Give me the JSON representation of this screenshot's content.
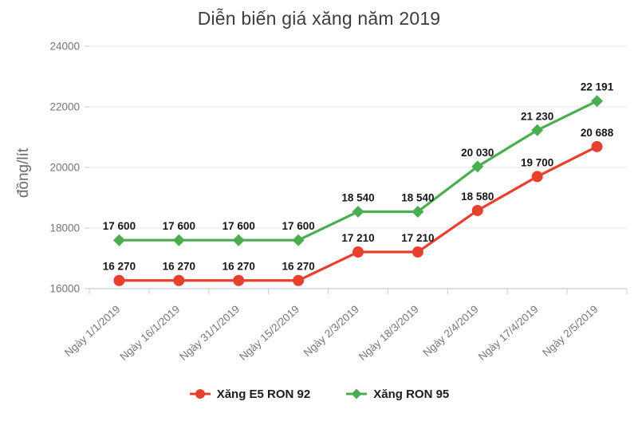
{
  "title": "Diễn biến giá xăng năm 2019",
  "chart_data": {
    "type": "line",
    "title": "Diễn biến giá xăng năm 2019",
    "xlabel": "",
    "ylabel": "đồng/lít",
    "ylim": [
      16000,
      24000
    ],
    "y_ticks": [
      16000,
      18000,
      20000,
      22000,
      24000
    ],
    "grid": "horizontal-only",
    "legend_position": "bottom",
    "x_tick_rotation": -42,
    "data_label_format": "space-thousands",
    "categories": [
      "Ngày 1/1/2019",
      "Ngày 16/1/2019",
      "Ngày 31/1/2019",
      "Ngày 15/2/2019",
      "Ngày 2/3/2019",
      "Ngày 18/3/2019",
      "Ngày 2/4/2019",
      "Ngày 17/4/2019",
      "Ngày 2/5/2019"
    ],
    "series": [
      {
        "name": "Xăng E5 RON 92",
        "color": "#e8402f",
        "marker": "circle",
        "values": [
          16270,
          16270,
          16270,
          16270,
          17210,
          17210,
          18580,
          19700,
          20688
        ]
      },
      {
        "name": "Xăng RON 95",
        "color": "#4aae50",
        "marker": "diamond",
        "values": [
          17600,
          17600,
          17600,
          17600,
          18540,
          18540,
          20030,
          21230,
          22191
        ]
      }
    ]
  },
  "colors": {
    "grid_line": "#e7e7e7",
    "axis_line": "#c7ccd2",
    "tick_label": "#757575",
    "data_label": "#161616",
    "title_text": "#3d3d3d",
    "axis_title_text": "#6b6b6b",
    "legend_text": "#1c1c1c"
  }
}
